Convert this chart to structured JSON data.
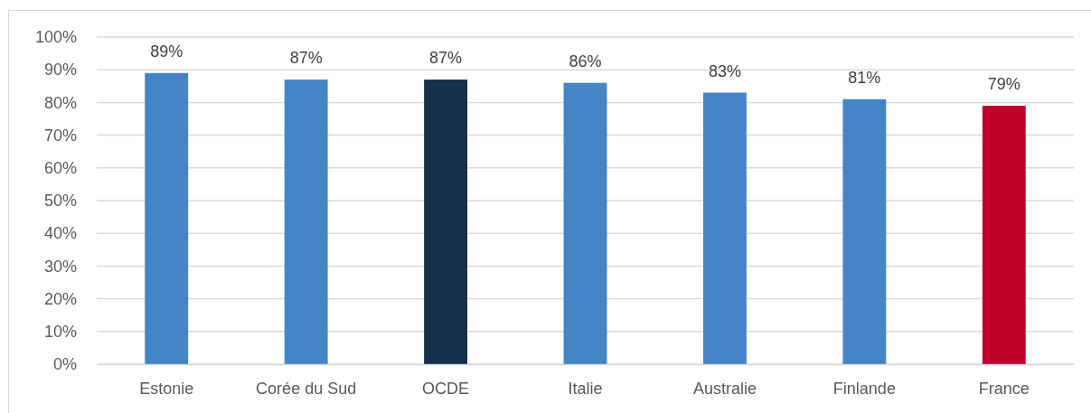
{
  "chart_data": {
    "type": "bar",
    "categories": [
      "Estonie",
      "Corée du Sud",
      "OCDE",
      "Italie",
      "Australie",
      "Finlande",
      "France"
    ],
    "values": [
      89,
      87,
      87,
      86,
      83,
      81,
      79
    ],
    "colors": [
      "#4385c6",
      "#4385c6",
      "#13304c",
      "#4385c6",
      "#4385c6",
      "#4385c6",
      "#c00029"
    ],
    "value_labels": [
      "89%",
      "87%",
      "87%",
      "86%",
      "83%",
      "81%",
      "79%"
    ],
    "ylim": [
      0,
      100
    ],
    "yticks": [
      {
        "value": 0,
        "label": "0%"
      },
      {
        "value": 10,
        "label": "10%"
      },
      {
        "value": 20,
        "label": "20%"
      },
      {
        "value": 30,
        "label": "30%"
      },
      {
        "value": 40,
        "label": "40%"
      },
      {
        "value": 50,
        "label": "50%"
      },
      {
        "value": 60,
        "label": "60%"
      },
      {
        "value": 70,
        "label": "70%"
      },
      {
        "value": 80,
        "label": "80%"
      },
      {
        "value": 90,
        "label": "90%"
      },
      {
        "value": 100,
        "label": "100%"
      }
    ],
    "grid": "y"
  }
}
